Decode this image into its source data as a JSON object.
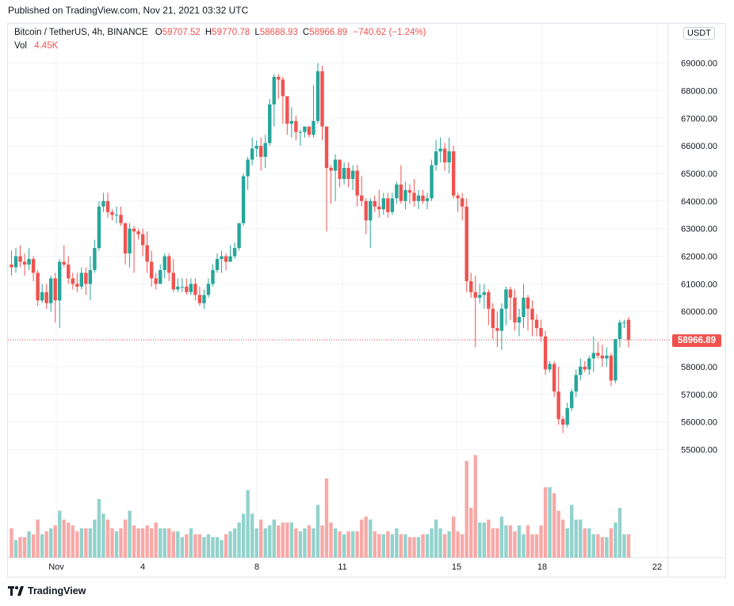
{
  "header": {
    "published": "Published on TradingView.com, Nov 21, 2021 03:32 UTC"
  },
  "legend": {
    "symbol": "Bitcoin / TetherUS, 4h, BINANCE",
    "open_label": "O",
    "open": "59707.52",
    "high_label": "H",
    "high": "59770.78",
    "low_label": "L",
    "low": "58688.93",
    "close_label": "C",
    "close": "58966.89",
    "change": "−740.62 (−1.24%)",
    "vol_label": "Vol",
    "vol": "4.45K"
  },
  "price_axis": {
    "unit": "USDT",
    "last_price": "58966.89"
  },
  "footer": {
    "brand": "TradingView"
  },
  "colors": {
    "up": "#26a69a",
    "down": "#ef5350",
    "up_volume": "#93d2cc",
    "down_volume": "#f7a9a7",
    "grid": "#f0f3fa"
  },
  "chart_data": {
    "type": "candlestick",
    "title": "Bitcoin / TetherUS, 4h, BINANCE",
    "xlabel": "",
    "ylabel": "",
    "ylim": [
      55000,
      70000
    ],
    "y_ticks": [
      "55000.00",
      "56000.00",
      "57000.00",
      "58000.00",
      "59000.00",
      "60000.00",
      "61000.00",
      "62000.00",
      "63000.00",
      "64000.00",
      "65000.00",
      "66000.00",
      "67000.00",
      "68000.00",
      "69000.00"
    ],
    "x_ticks": [
      "Nov",
      "4",
      "8",
      "11",
      "15",
      "18",
      "22"
    ],
    "grid": true,
    "volume_shown": true,
    "volume_unit_label": "Vol",
    "candles": [
      [
        61700,
        61600,
        61300,
        62200,
        1.0
      ],
      [
        61600,
        62000,
        61400,
        62300,
        0.6
      ],
      [
        62000,
        61800,
        61600,
        62400,
        0.7
      ],
      [
        61800,
        61700,
        61300,
        62100,
        0.7
      ],
      [
        61700,
        61900,
        61500,
        62300,
        0.9
      ],
      [
        61900,
        61400,
        61100,
        62000,
        0.8
      ],
      [
        61400,
        60400,
        60200,
        61500,
        1.3
      ],
      [
        60400,
        60700,
        60300,
        61000,
        0.8
      ],
      [
        60700,
        60300,
        60100,
        61000,
        0.9
      ],
      [
        60300,
        61200,
        60000,
        61300,
        1.0
      ],
      [
        61200,
        60400,
        59600,
        61400,
        1.1
      ],
      [
        60400,
        61800,
        59400,
        61900,
        1.6
      ],
      [
        61800,
        61700,
        61600,
        62400,
        1.3
      ],
      [
        61700,
        61200,
        61000,
        62000,
        1.2
      ],
      [
        61200,
        61000,
        60800,
        61400,
        1.1
      ],
      [
        61000,
        60900,
        60700,
        61400,
        0.9
      ],
      [
        60900,
        61400,
        60800,
        61600,
        1.0
      ],
      [
        61400,
        61000,
        60600,
        61600,
        1.0
      ],
      [
        61000,
        61500,
        60400,
        62000,
        1.0
      ],
      [
        61500,
        62300,
        61400,
        62600,
        1.3
      ],
      [
        62300,
        63800,
        62200,
        64000,
        2.0
      ],
      [
        63800,
        64000,
        63600,
        64300,
        1.5
      ],
      [
        64000,
        63600,
        63400,
        64300,
        1.3
      ],
      [
        63600,
        63500,
        63300,
        63700,
        1.0
      ],
      [
        63500,
        63500,
        63200,
        63800,
        0.9
      ],
      [
        63500,
        63200,
        63100,
        63800,
        1.0
      ],
      [
        63200,
        62100,
        61700,
        63200,
        1.3
      ],
      [
        62100,
        63000,
        61600,
        63200,
        1.6
      ],
      [
        63000,
        62900,
        61400,
        63100,
        1.1
      ],
      [
        62900,
        62800,
        62600,
        63000,
        1.0
      ],
      [
        62800,
        62400,
        62000,
        63000,
        1.0
      ],
      [
        62400,
        61800,
        61400,
        62900,
        1.1
      ],
      [
        61800,
        61200,
        60900,
        62200,
        1.0
      ],
      [
        61200,
        61000,
        60800,
        61400,
        1.2
      ],
      [
        61000,
        61500,
        61000,
        61700,
        1.0
      ],
      [
        61500,
        62000,
        61200,
        62100,
        1.0
      ],
      [
        62000,
        61400,
        61100,
        62100,
        1.0
      ],
      [
        61400,
        60800,
        60700,
        61900,
        0.9
      ],
      [
        60800,
        60900,
        60700,
        61200,
        0.9
      ],
      [
        60900,
        60900,
        60700,
        61200,
        0.7
      ],
      [
        60900,
        60700,
        60600,
        61200,
        0.8
      ],
      [
        60700,
        61000,
        60600,
        61200,
        1.0
      ],
      [
        61000,
        60600,
        60400,
        61200,
        0.8
      ],
      [
        60600,
        60300,
        60200,
        60900,
        0.8
      ],
      [
        60300,
        60600,
        60100,
        60800,
        0.7
      ],
      [
        60600,
        61000,
        60500,
        61200,
        0.8
      ],
      [
        61000,
        61500,
        60900,
        61700,
        0.7
      ],
      [
        61500,
        61900,
        61400,
        62100,
        0.7
      ],
      [
        61900,
        62000,
        61400,
        62200,
        0.6
      ],
      [
        62000,
        61800,
        61500,
        62100,
        0.8
      ],
      [
        61800,
        62000,
        61800,
        62400,
        0.9
      ],
      [
        62000,
        62300,
        61900,
        62500,
        1.0
      ],
      [
        62300,
        63200,
        62200,
        63200,
        1.2
      ],
      [
        63200,
        64900,
        63100,
        65000,
        1.5
      ],
      [
        64900,
        65500,
        64400,
        65600,
        2.3
      ],
      [
        65500,
        65900,
        65300,
        66300,
        1.5
      ],
      [
        65900,
        66000,
        65600,
        66200,
        1.0
      ],
      [
        66000,
        65600,
        65100,
        66300,
        1.3
      ],
      [
        65600,
        66100,
        65200,
        66400,
        1.0
      ],
      [
        66100,
        67500,
        66000,
        67700,
        1.1
      ],
      [
        67500,
        68500,
        66700,
        68600,
        1.3
      ],
      [
        68500,
        68400,
        67700,
        68600,
        1.1
      ],
      [
        68400,
        67800,
        66800,
        68500,
        1.2
      ],
      [
        67800,
        66800,
        66400,
        67800,
        1.2
      ],
      [
        66800,
        66900,
        66300,
        67400,
        1.2
      ],
      [
        66900,
        66500,
        66200,
        67100,
        1.0
      ],
      [
        66500,
        66500,
        66000,
        66600,
        0.9
      ],
      [
        66500,
        66700,
        66300,
        66700,
        1.0
      ],
      [
        66700,
        66400,
        66300,
        66700,
        1.1
      ],
      [
        66400,
        66900,
        66300,
        68200,
        1.0
      ],
      [
        66900,
        68700,
        66800,
        69000,
        1.8
      ],
      [
        68700,
        66700,
        66200,
        68900,
        1.1
      ],
      [
        66700,
        65200,
        62900,
        66700,
        2.7
      ],
      [
        65200,
        65100,
        63900,
        65300,
        1.2
      ],
      [
        65100,
        65500,
        64000,
        65700,
        1.0
      ],
      [
        65500,
        64800,
        64500,
        65500,
        0.9
      ],
      [
        64800,
        65200,
        64600,
        65400,
        0.8
      ],
      [
        65200,
        64800,
        64500,
        65400,
        0.9
      ],
      [
        64800,
        65100,
        64400,
        65300,
        0.9
      ],
      [
        65100,
        64200,
        63800,
        65300,
        0.9
      ],
      [
        64200,
        64000,
        63800,
        64900,
        1.3
      ],
      [
        64000,
        63300,
        62800,
        64100,
        1.4
      ],
      [
        63300,
        64000,
        62300,
        64100,
        1.3
      ],
      [
        64000,
        63800,
        63600,
        64200,
        0.9
      ],
      [
        63800,
        63700,
        63400,
        64400,
        0.8
      ],
      [
        63700,
        64100,
        63500,
        64300,
        0.8
      ],
      [
        64100,
        63600,
        63400,
        64300,
        0.9
      ],
      [
        63600,
        64100,
        63500,
        64300,
        0.8
      ],
      [
        64100,
        64600,
        63900,
        64700,
        1.0
      ],
      [
        64600,
        64000,
        63900,
        65300,
        0.8
      ],
      [
        64000,
        64400,
        63700,
        64700,
        0.8
      ],
      [
        64400,
        64300,
        63900,
        64600,
        0.7
      ],
      [
        64300,
        64000,
        63800,
        64800,
        0.7
      ],
      [
        64000,
        64200,
        63700,
        64400,
        0.7
      ],
      [
        64200,
        64000,
        63900,
        64400,
        0.8
      ],
      [
        64000,
        64100,
        63700,
        64300,
        0.8
      ],
      [
        64100,
        65300,
        64000,
        65500,
        1.0
      ],
      [
        65300,
        65800,
        65100,
        66200,
        1.3
      ],
      [
        65800,
        65900,
        65400,
        66300,
        1.0
      ],
      [
        65900,
        65400,
        65100,
        66100,
        0.8
      ],
      [
        65400,
        65800,
        65000,
        66300,
        0.9
      ],
      [
        65800,
        64200,
        64100,
        66000,
        1.4
      ],
      [
        64200,
        64100,
        63600,
        64300,
        0.9
      ],
      [
        64100,
        63800,
        63300,
        64300,
        0.8
      ],
      [
        63800,
        61100,
        60700,
        64100,
        3.3
      ],
      [
        61100,
        60700,
        60500,
        61400,
        1.7
      ],
      [
        60700,
        60500,
        58700,
        61300,
        3.5
      ],
      [
        60500,
        60600,
        60300,
        61000,
        1.2
      ],
      [
        60600,
        60700,
        60100,
        61000,
        1.2
      ],
      [
        60700,
        60100,
        59500,
        60800,
        1.3
      ],
      [
        60100,
        59400,
        59000,
        60300,
        1.0
      ],
      [
        59400,
        59300,
        58700,
        60000,
        1.0
      ],
      [
        59300,
        60100,
        58600,
        60300,
        1.4
      ],
      [
        60100,
        60800,
        59500,
        60900,
        1.1
      ],
      [
        60800,
        60500,
        59700,
        60900,
        1.1
      ],
      [
        60500,
        59600,
        59300,
        60800,
        0.9
      ],
      [
        59600,
        59800,
        59100,
        60100,
        1.1
      ],
      [
        59800,
        60500,
        59400,
        61000,
        0.8
      ],
      [
        60500,
        60100,
        59300,
        60600,
        1.1
      ],
      [
        60100,
        59700,
        59100,
        60400,
        0.8
      ],
      [
        59700,
        59400,
        59100,
        59900,
        0.8
      ],
      [
        59400,
        59100,
        58900,
        59700,
        1.1
      ],
      [
        59100,
        57900,
        57700,
        59300,
        2.4
      ],
      [
        57900,
        58100,
        57800,
        58200,
        2.4
      ],
      [
        58100,
        57100,
        56900,
        58200,
        2.2
      ],
      [
        57100,
        56100,
        55900,
        58000,
        1.6
      ],
      [
        56100,
        55900,
        55600,
        56200,
        1.3
      ],
      [
        55900,
        56500,
        55800,
        56700,
        1.0
      ],
      [
        56500,
        57100,
        56400,
        57200,
        1.8
      ],
      [
        57100,
        57700,
        56900,
        57900,
        1.3
      ],
      [
        57700,
        58000,
        57500,
        58300,
        1.3
      ],
      [
        58000,
        57900,
        57800,
        58200,
        1.0
      ],
      [
        57900,
        58300,
        57700,
        58400,
        1.0
      ],
      [
        58300,
        58500,
        57800,
        59100,
        0.8
      ],
      [
        58500,
        58400,
        58300,
        58900,
        0.8
      ],
      [
        58400,
        58300,
        58000,
        58800,
        0.7
      ],
      [
        58300,
        58400,
        58000,
        58700,
        0.7
      ],
      [
        58400,
        57500,
        57300,
        58500,
        1.0
      ],
      [
        57500,
        59000,
        57400,
        59000,
        1.2
      ],
      [
        59000,
        59600,
        58700,
        59700,
        1.7
      ],
      [
        59600,
        59600,
        59400,
        59700,
        0.8
      ],
      [
        59700,
        58970,
        58700,
        59800,
        0.8
      ]
    ]
  }
}
